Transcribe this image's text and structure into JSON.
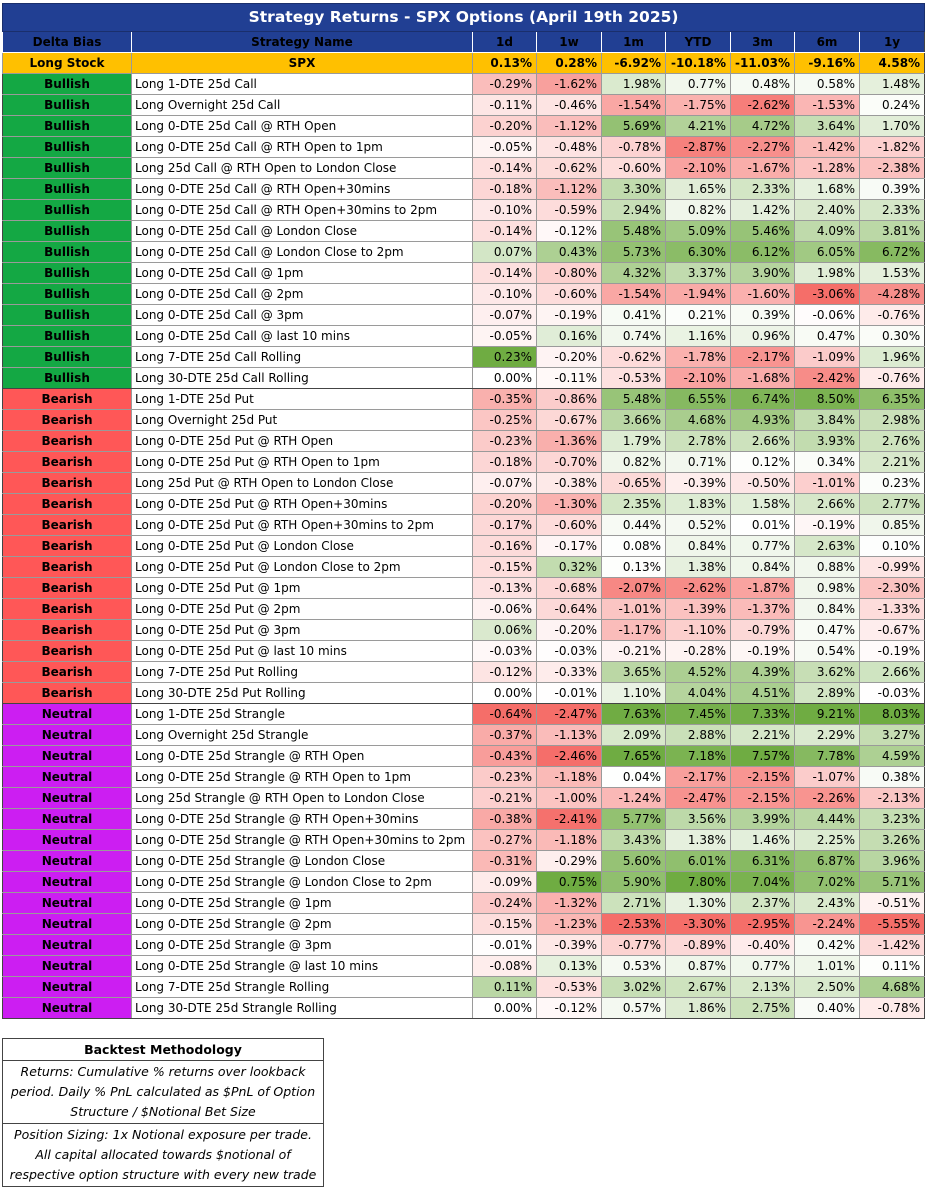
{
  "title": "Strategy Returns - SPX Options (April 19th 2025)",
  "headers": [
    "Delta Bias",
    "Strategy Name",
    "1d",
    "1w",
    "1m",
    "YTD",
    "3m",
    "6m",
    "1y"
  ],
  "benchmark": {
    "bias": "Long Stock",
    "name": "SPX",
    "values": [
      "0.13%",
      "0.28%",
      "-6.92%",
      "-10.18%",
      "-11.03%",
      "-9.16%",
      "4.58%"
    ]
  },
  "rows": [
    {
      "bias": "Bullish",
      "name": "Long 1-DTE 25d Call",
      "values": [
        "-0.29%",
        "-1.62%",
        "1.98%",
        "0.77%",
        "0.48%",
        "0.58%",
        "1.48%"
      ]
    },
    {
      "bias": "Bullish",
      "name": "Long Overnight 25d Call",
      "values": [
        "-0.11%",
        "-0.46%",
        "-1.54%",
        "-1.75%",
        "-2.62%",
        "-1.53%",
        "0.24%"
      ]
    },
    {
      "bias": "Bullish",
      "name": "Long 0-DTE 25d Call @ RTH Open",
      "values": [
        "-0.20%",
        "-1.12%",
        "5.69%",
        "4.21%",
        "4.72%",
        "3.64%",
        "1.70%"
      ]
    },
    {
      "bias": "Bullish",
      "name": "Long 0-DTE 25d Call @ RTH Open to 1pm",
      "values": [
        "-0.05%",
        "-0.48%",
        "-0.78%",
        "-2.87%",
        "-2.27%",
        "-1.42%",
        "-1.82%"
      ]
    },
    {
      "bias": "Bullish",
      "name": "Long 25d Call @ RTH Open to London Close",
      "values": [
        "-0.14%",
        "-0.62%",
        "-0.60%",
        "-2.10%",
        "-1.67%",
        "-1.28%",
        "-2.38%"
      ]
    },
    {
      "bias": "Bullish",
      "name": "Long 0-DTE 25d Call @ RTH Open+30mins",
      "values": [
        "-0.18%",
        "-1.12%",
        "3.30%",
        "1.65%",
        "2.33%",
        "1.68%",
        "0.39%"
      ]
    },
    {
      "bias": "Bullish",
      "name": "Long 0-DTE 25d Call @ RTH Open+30mins to 2pm",
      "values": [
        "-0.10%",
        "-0.59%",
        "2.94%",
        "0.82%",
        "1.42%",
        "2.40%",
        "2.33%"
      ]
    },
    {
      "bias": "Bullish",
      "name": "Long 0-DTE 25d Call @ London Close",
      "values": [
        "-0.14%",
        "-0.12%",
        "5.48%",
        "5.09%",
        "5.46%",
        "4.09%",
        "3.81%"
      ]
    },
    {
      "bias": "Bullish",
      "name": "Long 0-DTE 25d Call @ London Close to 2pm",
      "values": [
        "0.07%",
        "0.43%",
        "5.73%",
        "6.30%",
        "6.12%",
        "6.05%",
        "6.72%"
      ]
    },
    {
      "bias": "Bullish",
      "name": "Long 0-DTE 25d Call @ 1pm",
      "values": [
        "-0.14%",
        "-0.80%",
        "4.32%",
        "3.37%",
        "3.90%",
        "1.98%",
        "1.53%"
      ]
    },
    {
      "bias": "Bullish",
      "name": "Long 0-DTE 25d Call @ 2pm",
      "values": [
        "-0.10%",
        "-0.60%",
        "-1.54%",
        "-1.94%",
        "-1.60%",
        "-3.06%",
        "-4.28%"
      ]
    },
    {
      "bias": "Bullish",
      "name": "Long 0-DTE 25d Call @ 3pm",
      "values": [
        "-0.07%",
        "-0.19%",
        "0.41%",
        "0.21%",
        "0.39%",
        "-0.06%",
        "-0.76%"
      ]
    },
    {
      "bias": "Bullish",
      "name": "Long 0-DTE 25d Call @ last 10 mins",
      "values": [
        "-0.05%",
        "0.16%",
        "0.74%",
        "1.16%",
        "0.96%",
        "0.47%",
        "0.30%"
      ]
    },
    {
      "bias": "Bullish",
      "name": "Long 7-DTE 25d Call Rolling",
      "values": [
        "0.23%",
        "-0.20%",
        "-0.62%",
        "-1.78%",
        "-2.17%",
        "-1.09%",
        "1.96%"
      ]
    },
    {
      "bias": "Bullish",
      "name": "Long 30-DTE 25d Call Rolling",
      "values": [
        "0.00%",
        "-0.11%",
        "-0.53%",
        "-2.10%",
        "-1.68%",
        "-2.42%",
        "-0.76%"
      ]
    },
    {
      "bias": "Bearish",
      "name": "Long 1-DTE 25d Put",
      "values": [
        "-0.35%",
        "-0.86%",
        "5.48%",
        "6.55%",
        "6.74%",
        "8.50%",
        "6.35%"
      ]
    },
    {
      "bias": "Bearish",
      "name": "Long Overnight 25d Put",
      "values": [
        "-0.25%",
        "-0.67%",
        "3.66%",
        "4.68%",
        "4.93%",
        "3.84%",
        "2.98%"
      ]
    },
    {
      "bias": "Bearish",
      "name": "Long 0-DTE 25d Put @ RTH Open",
      "values": [
        "-0.23%",
        "-1.36%",
        "1.79%",
        "2.78%",
        "2.66%",
        "3.93%",
        "2.76%"
      ]
    },
    {
      "bias": "Bearish",
      "name": "Long 0-DTE 25d Put @ RTH Open to 1pm",
      "values": [
        "-0.18%",
        "-0.70%",
        "0.82%",
        "0.71%",
        "0.12%",
        "0.34%",
        "2.21%"
      ]
    },
    {
      "bias": "Bearish",
      "name": "Long 25d Put @ RTH Open to London Close",
      "values": [
        "-0.07%",
        "-0.38%",
        "-0.65%",
        "-0.39%",
        "-0.50%",
        "-1.01%",
        "0.23%"
      ]
    },
    {
      "bias": "Bearish",
      "name": "Long 0-DTE 25d Put @ RTH Open+30mins",
      "values": [
        "-0.20%",
        "-1.30%",
        "2.35%",
        "1.83%",
        "1.58%",
        "2.66%",
        "2.77%"
      ]
    },
    {
      "bias": "Bearish",
      "name": "Long 0-DTE 25d Put @ RTH Open+30mins to 2pm",
      "values": [
        "-0.17%",
        "-0.60%",
        "0.44%",
        "0.52%",
        "0.01%",
        "-0.19%",
        "0.85%"
      ]
    },
    {
      "bias": "Bearish",
      "name": "Long 0-DTE 25d Put @ London Close",
      "values": [
        "-0.16%",
        "-0.17%",
        "0.08%",
        "0.84%",
        "0.77%",
        "2.63%",
        "0.10%"
      ]
    },
    {
      "bias": "Bearish",
      "name": "Long 0-DTE 25d Put @ London Close to 2pm",
      "values": [
        "-0.15%",
        "0.32%",
        "0.13%",
        "1.38%",
        "0.84%",
        "0.88%",
        "-0.99%"
      ]
    },
    {
      "bias": "Bearish",
      "name": "Long 0-DTE 25d Put @ 1pm",
      "values": [
        "-0.13%",
        "-0.68%",
        "-2.07%",
        "-2.62%",
        "-1.87%",
        "0.98%",
        "-2.30%"
      ]
    },
    {
      "bias": "Bearish",
      "name": "Long 0-DTE 25d Put @ 2pm",
      "values": [
        "-0.06%",
        "-0.64%",
        "-1.01%",
        "-1.39%",
        "-1.37%",
        "0.84%",
        "-1.33%"
      ]
    },
    {
      "bias": "Bearish",
      "name": "Long 0-DTE 25d Put @ 3pm",
      "values": [
        "0.06%",
        "-0.20%",
        "-1.17%",
        "-1.10%",
        "-0.79%",
        "0.47%",
        "-0.67%"
      ]
    },
    {
      "bias": "Bearish",
      "name": "Long 0-DTE 25d Put @ last 10 mins",
      "values": [
        "-0.03%",
        "-0.03%",
        "-0.21%",
        "-0.28%",
        "-0.19%",
        "0.54%",
        "-0.19%"
      ]
    },
    {
      "bias": "Bearish",
      "name": "Long 7-DTE 25d Put Rolling",
      "values": [
        "-0.12%",
        "-0.33%",
        "3.65%",
        "4.52%",
        "4.39%",
        "3.62%",
        "2.66%"
      ]
    },
    {
      "bias": "Bearish",
      "name": "Long 30-DTE 25d Put Rolling",
      "values": [
        "0.00%",
        "-0.01%",
        "1.10%",
        "4.04%",
        "4.51%",
        "2.89%",
        "-0.03%"
      ]
    },
    {
      "bias": "Neutral",
      "name": "Long 1-DTE 25d Strangle",
      "values": [
        "-0.64%",
        "-2.47%",
        "7.63%",
        "7.45%",
        "7.33%",
        "9.21%",
        "8.03%"
      ]
    },
    {
      "bias": "Neutral",
      "name": "Long Overnight 25d Strangle",
      "values": [
        "-0.37%",
        "-1.13%",
        "2.09%",
        "2.88%",
        "2.21%",
        "2.29%",
        "3.27%"
      ]
    },
    {
      "bias": "Neutral",
      "name": "Long 0-DTE 25d Strangle @ RTH Open",
      "values": [
        "-0.43%",
        "-2.46%",
        "7.65%",
        "7.18%",
        "7.57%",
        "7.78%",
        "4.59%"
      ]
    },
    {
      "bias": "Neutral",
      "name": "Long 0-DTE 25d Strangle @ RTH Open to 1pm",
      "values": [
        "-0.23%",
        "-1.18%",
        "0.04%",
        "-2.17%",
        "-2.15%",
        "-1.07%",
        "0.38%"
      ]
    },
    {
      "bias": "Neutral",
      "name": "Long 25d Strangle @ RTH Open to London Close",
      "values": [
        "-0.21%",
        "-1.00%",
        "-1.24%",
        "-2.47%",
        "-2.15%",
        "-2.26%",
        "-2.13%"
      ]
    },
    {
      "bias": "Neutral",
      "name": "Long 0-DTE 25d Strangle @ RTH Open+30mins",
      "values": [
        "-0.38%",
        "-2.41%",
        "5.77%",
        "3.56%",
        "3.99%",
        "4.44%",
        "3.23%"
      ]
    },
    {
      "bias": "Neutral",
      "name": "Long 0-DTE 25d Strangle @ RTH Open+30mins to 2pm",
      "values": [
        "-0.27%",
        "-1.18%",
        "3.43%",
        "1.38%",
        "1.46%",
        "2.25%",
        "3.26%"
      ]
    },
    {
      "bias": "Neutral",
      "name": "Long 0-DTE 25d Strangle @ London Close",
      "values": [
        "-0.31%",
        "-0.29%",
        "5.60%",
        "6.01%",
        "6.31%",
        "6.87%",
        "3.96%"
      ]
    },
    {
      "bias": "Neutral",
      "name": "Long 0-DTE 25d Strangle @ London Close to 2pm",
      "values": [
        "-0.09%",
        "0.75%",
        "5.90%",
        "7.80%",
        "7.04%",
        "7.02%",
        "5.71%"
      ]
    },
    {
      "bias": "Neutral",
      "name": "Long 0-DTE 25d Strangle @ 1pm",
      "values": [
        "-0.24%",
        "-1.32%",
        "2.71%",
        "1.30%",
        "2.37%",
        "2.43%",
        "-0.51%"
      ]
    },
    {
      "bias": "Neutral",
      "name": "Long 0-DTE 25d Strangle @ 2pm",
      "values": [
        "-0.15%",
        "-1.23%",
        "-2.53%",
        "-3.30%",
        "-2.95%",
        "-2.24%",
        "-5.55%"
      ]
    },
    {
      "bias": "Neutral",
      "name": "Long 0-DTE 25d Strangle @ 3pm",
      "values": [
        "-0.01%",
        "-0.39%",
        "-0.77%",
        "-0.89%",
        "-0.40%",
        "0.42%",
        "-1.42%"
      ]
    },
    {
      "bias": "Neutral",
      "name": "Long 0-DTE 25d Strangle @ last 10 mins",
      "values": [
        "-0.08%",
        "0.13%",
        "0.53%",
        "0.87%",
        "0.77%",
        "1.01%",
        "0.11%"
      ]
    },
    {
      "bias": "Neutral",
      "name": "Long 7-DTE 25d Strangle Rolling",
      "values": [
        "0.11%",
        "-0.53%",
        "3.02%",
        "2.67%",
        "2.13%",
        "2.50%",
        "4.68%"
      ]
    },
    {
      "bias": "Neutral",
      "name": "Long 30-DTE 25d Strangle Rolling",
      "values": [
        "0.00%",
        "-0.12%",
        "0.57%",
        "1.86%",
        "2.75%",
        "0.40%",
        "-0.78%"
      ]
    }
  ],
  "methodology": {
    "title": "Backtest Methodology",
    "returns": "Returns: Cumulative % returns over lookback period. Daily % PnL calculated as $PnL of Option Structure / $Notional Bet Size",
    "sizing": "Position Sizing: 1x Notional exposure per trade. All capital allocated towards $notional of respective option structure with every new trade"
  },
  "colors": {
    "header_bg": "#213f93",
    "benchmark_bg": "#ffc000",
    "bullish": "#14a844",
    "bearish": "#ff5757",
    "neutral": "#cc1ef2",
    "heat_positive": "#63a532",
    "heat_negative": "#f4615c"
  }
}
